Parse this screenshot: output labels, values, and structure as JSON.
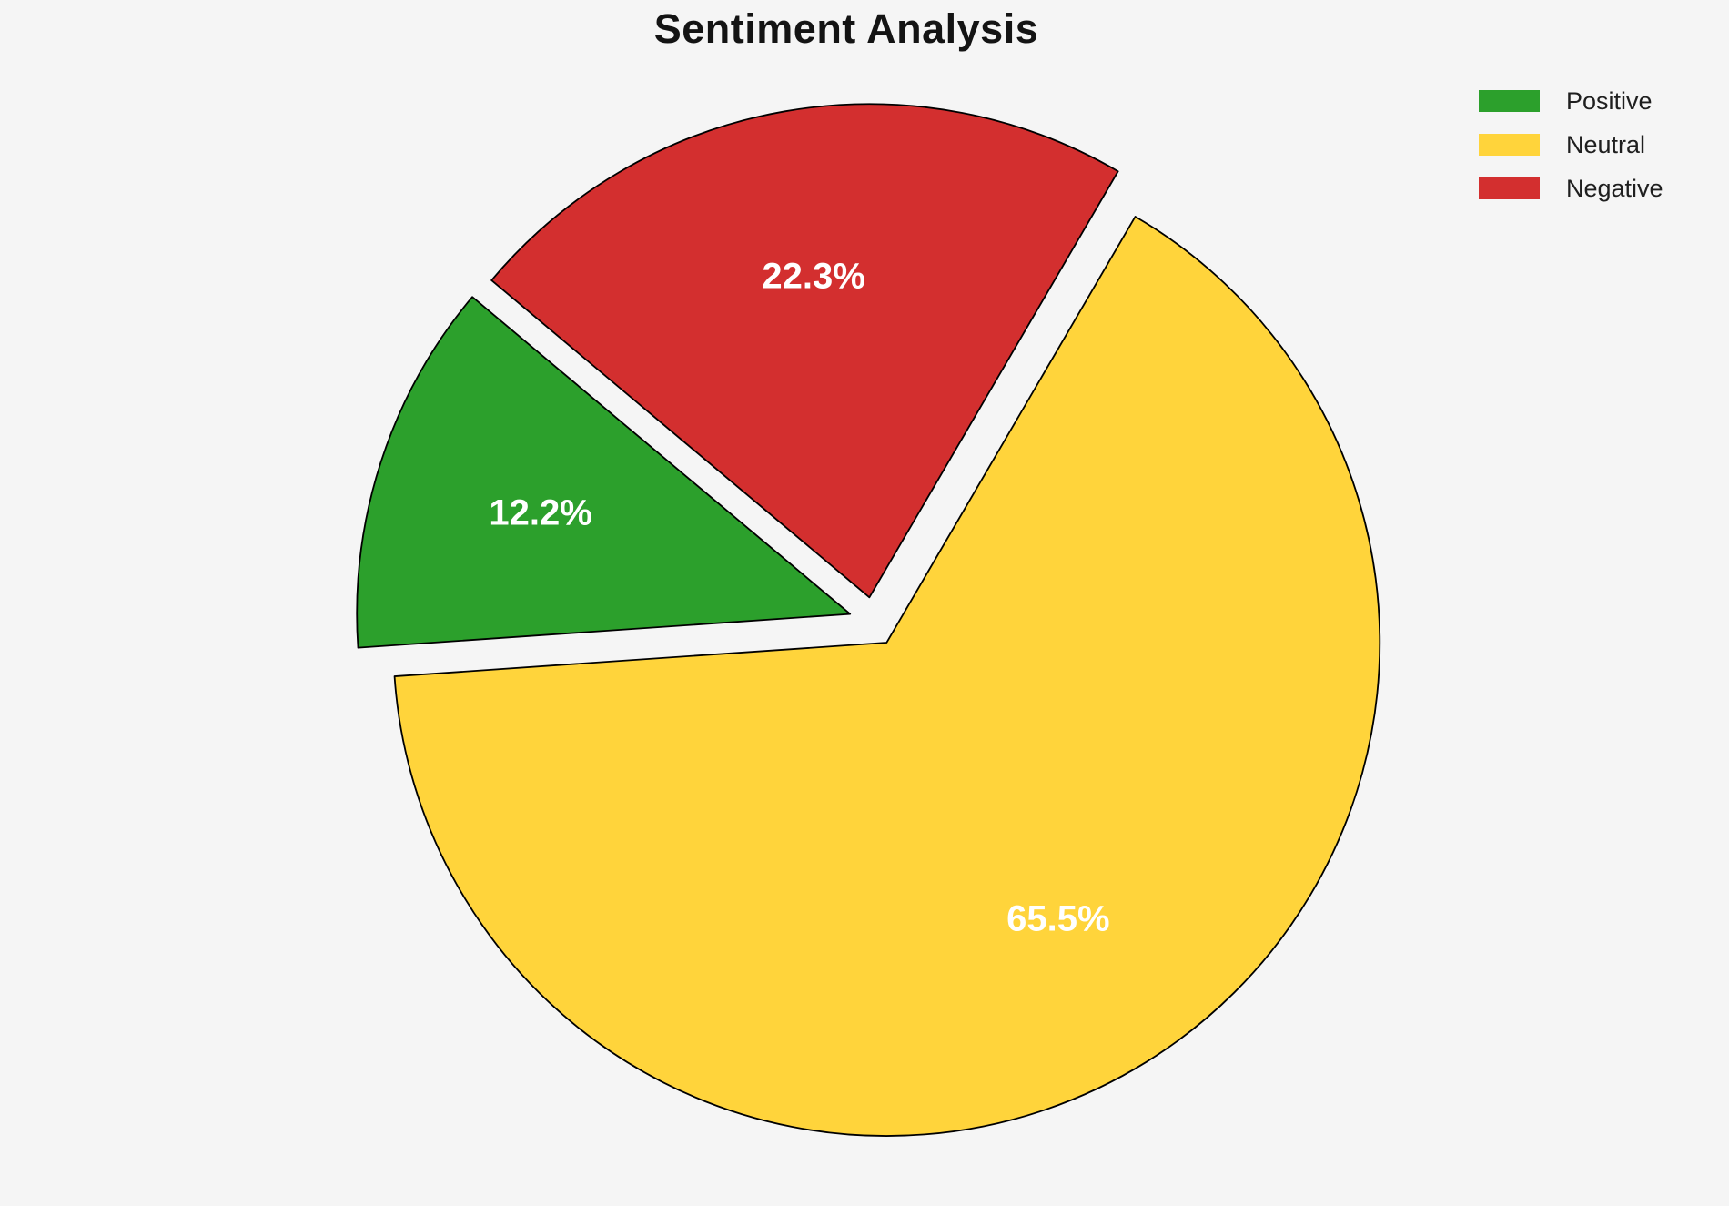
{
  "page": {
    "background_color": "#f5f5f5"
  },
  "chart_data": {
    "type": "pie",
    "title": "Sentiment Analysis",
    "categories": [
      "Positive",
      "Neutral",
      "Negative"
    ],
    "values": [
      12.2,
      65.5,
      22.3
    ],
    "slice_labels": [
      "12.2%",
      "65.5%",
      "22.3%"
    ],
    "colors": [
      "#2ca02c",
      "#ffd43b",
      "#d32f2f"
    ],
    "start_angle_deg": 140,
    "direction": "counterclockwise",
    "explode": 0.05,
    "pct_distance": 0.66,
    "label_color": "#ffffff",
    "edge_color": "#000000",
    "edge_width": 1.8,
    "legend_position": "upper right",
    "grid": false
  }
}
